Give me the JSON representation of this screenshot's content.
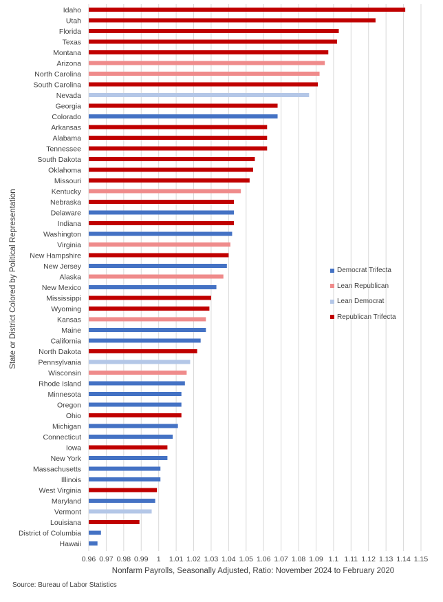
{
  "chart_data": {
    "type": "bar",
    "orientation": "horizontal",
    "xlabel": "Nonfarm Payrolls, Seasonally Adjusted, Ratio: November 2024 to February 2020",
    "ylabel": "State or District Colored by Political Representation",
    "xlim": [
      0.96,
      1.15
    ],
    "xticks": [
      "0.96",
      "0.97",
      "0.98",
      "0.99",
      "1",
      "1.01",
      "1.02",
      "1.03",
      "1.04",
      "1.05",
      "1.06",
      "1.07",
      "1.08",
      "1.09",
      "1.1",
      "1.11",
      "1.12",
      "1.13",
      "1.14",
      "1.15"
    ],
    "grid": "vertical",
    "legend_position": "right",
    "groups": {
      "dem": {
        "label": "Democrat Trifecta",
        "color": "#4472c4"
      },
      "lrep": {
        "label": "Lean Republican",
        "color": "#ef8b8b"
      },
      "ldem": {
        "label": "Lean Democrat",
        "color": "#b4c7e7"
      },
      "rep": {
        "label": "Republican Trifecta",
        "color": "#c00000"
      }
    },
    "legend_order": [
      "dem",
      "lrep",
      "ldem",
      "rep"
    ],
    "bars": [
      {
        "label": "Idaho",
        "value": 1.141,
        "group": "rep"
      },
      {
        "label": "Utah",
        "value": 1.124,
        "group": "rep"
      },
      {
        "label": "Florida",
        "value": 1.103,
        "group": "rep"
      },
      {
        "label": "Texas",
        "value": 1.102,
        "group": "rep"
      },
      {
        "label": "Montana",
        "value": 1.097,
        "group": "rep"
      },
      {
        "label": "Arizona",
        "value": 1.095,
        "group": "lrep"
      },
      {
        "label": "North Carolina",
        "value": 1.092,
        "group": "lrep"
      },
      {
        "label": "South Carolina",
        "value": 1.091,
        "group": "rep"
      },
      {
        "label": "Nevada",
        "value": 1.086,
        "group": "ldem"
      },
      {
        "label": "Georgia",
        "value": 1.068,
        "group": "rep"
      },
      {
        "label": "Colorado",
        "value": 1.068,
        "group": "dem"
      },
      {
        "label": "Arkansas",
        "value": 1.062,
        "group": "rep"
      },
      {
        "label": "Alabama",
        "value": 1.062,
        "group": "rep"
      },
      {
        "label": "Tennessee",
        "value": 1.062,
        "group": "rep"
      },
      {
        "label": "South Dakota",
        "value": 1.055,
        "group": "rep"
      },
      {
        "label": "Oklahoma",
        "value": 1.054,
        "group": "rep"
      },
      {
        "label": "Missouri",
        "value": 1.052,
        "group": "rep"
      },
      {
        "label": "Kentucky",
        "value": 1.047,
        "group": "lrep"
      },
      {
        "label": "Nebraska",
        "value": 1.043,
        "group": "rep"
      },
      {
        "label": "Delaware",
        "value": 1.043,
        "group": "dem"
      },
      {
        "label": "Indiana",
        "value": 1.043,
        "group": "rep"
      },
      {
        "label": "Washington",
        "value": 1.042,
        "group": "dem"
      },
      {
        "label": "Virginia",
        "value": 1.041,
        "group": "lrep"
      },
      {
        "label": "New Hampshire",
        "value": 1.04,
        "group": "rep"
      },
      {
        "label": "New Jersey",
        "value": 1.039,
        "group": "dem"
      },
      {
        "label": "Alaska",
        "value": 1.037,
        "group": "lrep"
      },
      {
        "label": "New Mexico",
        "value": 1.033,
        "group": "dem"
      },
      {
        "label": "Mississippi",
        "value": 1.03,
        "group": "rep"
      },
      {
        "label": "Wyoming",
        "value": 1.029,
        "group": "rep"
      },
      {
        "label": "Kansas",
        "value": 1.027,
        "group": "lrep"
      },
      {
        "label": "Maine",
        "value": 1.027,
        "group": "dem"
      },
      {
        "label": "California",
        "value": 1.024,
        "group": "dem"
      },
      {
        "label": "North Dakota",
        "value": 1.022,
        "group": "rep"
      },
      {
        "label": "Pennsylvania",
        "value": 1.018,
        "group": "ldem"
      },
      {
        "label": "Wisconsin",
        "value": 1.016,
        "group": "lrep"
      },
      {
        "label": "Rhode Island",
        "value": 1.015,
        "group": "dem"
      },
      {
        "label": "Minnesota",
        "value": 1.013,
        "group": "dem"
      },
      {
        "label": "Oregon",
        "value": 1.013,
        "group": "dem"
      },
      {
        "label": "Ohio",
        "value": 1.013,
        "group": "rep"
      },
      {
        "label": "Michigan",
        "value": 1.011,
        "group": "dem"
      },
      {
        "label": "Connecticut",
        "value": 1.008,
        "group": "dem"
      },
      {
        "label": "Iowa",
        "value": 1.005,
        "group": "rep"
      },
      {
        "label": "New York",
        "value": 1.005,
        "group": "dem"
      },
      {
        "label": "Massachusetts",
        "value": 1.001,
        "group": "dem"
      },
      {
        "label": "Illinois",
        "value": 1.001,
        "group": "dem"
      },
      {
        "label": "West Virginia",
        "value": 0.999,
        "group": "rep"
      },
      {
        "label": "Maryland",
        "value": 0.998,
        "group": "dem"
      },
      {
        "label": "Vermont",
        "value": 0.996,
        "group": "ldem"
      },
      {
        "label": "Louisiana",
        "value": 0.989,
        "group": "rep"
      },
      {
        "label": "District of Columbia",
        "value": 0.967,
        "group": "dem"
      },
      {
        "label": "Hawaii",
        "value": 0.965,
        "group": "dem"
      }
    ]
  },
  "source": "Source: Bureau of Labor Statistics"
}
